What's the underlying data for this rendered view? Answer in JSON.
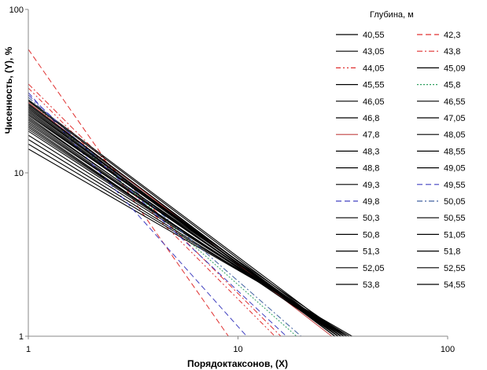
{
  "chart_data": {
    "type": "line",
    "title": "",
    "xlabel": "Порядоктаксонов, (X)",
    "ylabel": "Чисенность, (Y),  %",
    "legend_title": "Глубина, м",
    "x_scale": "log",
    "y_scale": "log",
    "xlim": [
      1,
      100
    ],
    "ylim": [
      1,
      100
    ],
    "x_ticks": [
      "1",
      "10",
      "100"
    ],
    "y_ticks": [
      "1",
      "10",
      "100"
    ],
    "grid": false,
    "legend_position": "right",
    "series": [
      {
        "name": "40,55",
        "color": "#000000",
        "dash": "solid",
        "values": [
          [
            1,
            19
          ],
          [
            31,
            1
          ]
        ]
      },
      {
        "name": "42,3",
        "color": "#e03030",
        "dash": "dash",
        "values": [
          [
            1,
            57
          ],
          [
            9,
            1
          ]
        ]
      },
      {
        "name": "43,05",
        "color": "#000000",
        "dash": "solid",
        "values": [
          [
            1,
            20
          ],
          [
            32,
            1
          ]
        ]
      },
      {
        "name": "43,8",
        "color": "#e03030",
        "dash": "dashdot",
        "values": [
          [
            1,
            35
          ],
          [
            16,
            1
          ]
        ]
      },
      {
        "name": "44,05",
        "color": "#e03030",
        "dash": "dashdotdot",
        "values": [
          [
            1,
            33
          ],
          [
            15,
            1
          ]
        ]
      },
      {
        "name": "45,09",
        "color": "#000000",
        "dash": "solid",
        "values": [
          [
            1,
            21
          ],
          [
            31,
            1
          ]
        ]
      },
      {
        "name": "45,55",
        "color": "#000000",
        "dash": "solid",
        "values": [
          [
            1,
            22
          ],
          [
            30,
            1
          ]
        ]
      },
      {
        "name": "45,8",
        "color": "#30a060",
        "dash": "dot",
        "values": [
          [
            1,
            28
          ],
          [
            19,
            1
          ]
        ]
      },
      {
        "name": "46,05",
        "color": "#000000",
        "dash": "solid",
        "values": [
          [
            1,
            23
          ],
          [
            31,
            1
          ]
        ]
      },
      {
        "name": "46,55",
        "color": "#000000",
        "dash": "solid",
        "values": [
          [
            1,
            24
          ],
          [
            30,
            1
          ]
        ]
      },
      {
        "name": "46,8",
        "color": "#000000",
        "dash": "solid",
        "values": [
          [
            1,
            25
          ],
          [
            29,
            1
          ]
        ]
      },
      {
        "name": "47,05",
        "color": "#000000",
        "dash": "solid",
        "values": [
          [
            1,
            26
          ],
          [
            30,
            1
          ]
        ]
      },
      {
        "name": "47,8",
        "color": "#c04040",
        "dash": "solid",
        "values": [
          [
            1,
            27
          ],
          [
            28,
            1
          ]
        ]
      },
      {
        "name": "48,05",
        "color": "#000000",
        "dash": "solid",
        "values": [
          [
            1,
            28
          ],
          [
            32,
            1
          ]
        ]
      },
      {
        "name": "48,3",
        "color": "#000000",
        "dash": "solid",
        "values": [
          [
            1,
            17
          ],
          [
            33,
            1
          ]
        ]
      },
      {
        "name": "48,55",
        "color": "#000000",
        "dash": "solid",
        "values": [
          [
            1,
            18
          ],
          [
            32,
            1
          ]
        ]
      },
      {
        "name": "48,8",
        "color": "#000000",
        "dash": "solid",
        "values": [
          [
            1,
            15
          ],
          [
            34,
            1
          ]
        ]
      },
      {
        "name": "49,05",
        "color": "#000000",
        "dash": "solid",
        "values": [
          [
            1,
            16
          ],
          [
            33,
            1
          ]
        ]
      },
      {
        "name": "49,3",
        "color": "#000000",
        "dash": "solid",
        "values": [
          [
            1,
            14
          ],
          [
            35,
            1
          ]
        ]
      },
      {
        "name": "49,55",
        "color": "#4040c0",
        "dash": "dash",
        "values": [
          [
            1,
            30
          ],
          [
            17,
            1
          ]
        ]
      },
      {
        "name": "49,8",
        "color": "#4040c0",
        "dash": "dash",
        "values": [
          [
            1,
            31
          ],
          [
            11,
            1
          ]
        ]
      },
      {
        "name": "50,05",
        "color": "#4060a0",
        "dash": "dashdot",
        "values": [
          [
            1,
            29
          ],
          [
            20,
            1
          ]
        ]
      },
      {
        "name": "50,3",
        "color": "#000000",
        "dash": "solid",
        "values": [
          [
            1,
            19.5
          ],
          [
            30,
            1
          ]
        ]
      },
      {
        "name": "50,55",
        "color": "#000000",
        "dash": "solid",
        "values": [
          [
            1,
            20.5
          ],
          [
            31,
            1
          ]
        ]
      },
      {
        "name": "50,8",
        "color": "#000000",
        "dash": "solid",
        "values": [
          [
            1,
            21.5
          ],
          [
            32,
            1
          ]
        ]
      },
      {
        "name": "51,05",
        "color": "#000000",
        "dash": "solid",
        "values": [
          [
            1,
            22.5
          ],
          [
            33,
            1
          ]
        ]
      },
      {
        "name": "51,3",
        "color": "#000000",
        "dash": "solid",
        "values": [
          [
            1,
            23.5
          ],
          [
            30,
            1
          ]
        ]
      },
      {
        "name": "51,8",
        "color": "#000000",
        "dash": "solid",
        "values": [
          [
            1,
            24.5
          ],
          [
            31,
            1
          ]
        ]
      },
      {
        "name": "52,05",
        "color": "#000000",
        "dash": "solid",
        "values": [
          [
            1,
            25.5
          ],
          [
            29,
            1
          ]
        ]
      },
      {
        "name": "52,55",
        "color": "#000000",
        "dash": "solid",
        "values": [
          [
            1,
            26.5
          ],
          [
            30,
            1
          ]
        ]
      },
      {
        "name": "53,8",
        "color": "#000000",
        "dash": "solid",
        "values": [
          [
            1,
            27.5
          ],
          [
            31,
            1
          ]
        ]
      },
      {
        "name": "54,55",
        "color": "#000000",
        "dash": "solid",
        "values": [
          [
            1,
            18.5
          ],
          [
            32,
            1
          ]
        ]
      }
    ]
  }
}
